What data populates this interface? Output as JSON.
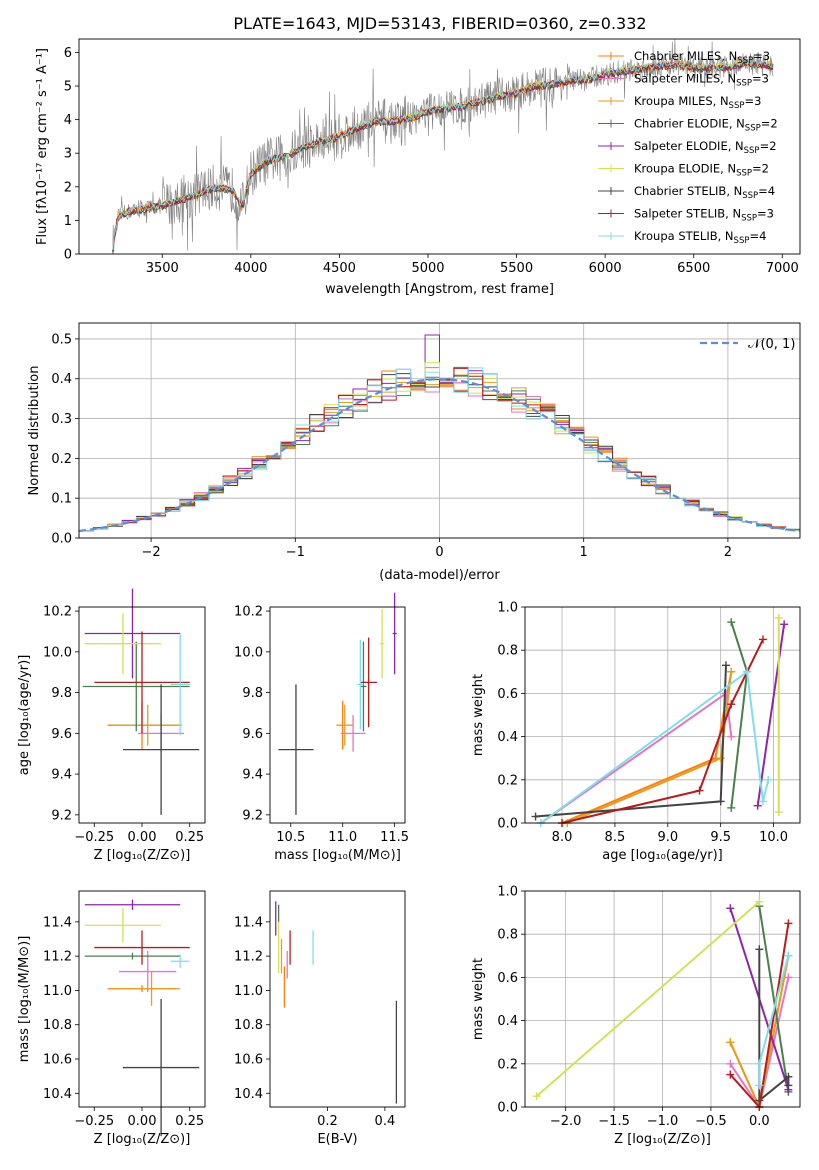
{
  "colors": {
    "chabrier_miles": "#ff7f0e",
    "salpeter_miles": "#e377c2",
    "kroupa_miles": "#e0a020",
    "chabrier_elodie": "#4a7f4a",
    "salpeter_elodie": "#8e24aa",
    "kroupa_elodie": "#d4e157",
    "chabrier_stelib": "#444444",
    "salpeter_stelib": "#b71c1c",
    "kroupa_stelib": "#80deea",
    "data": "#808080",
    "normal": "#5b8fd9"
  },
  "chart_data": [
    {
      "id": "spectrum",
      "type": "line",
      "title": "PLATE=1643, MJD=53143, FIBERID=0360, z=0.332",
      "xlabel": "wavelength [Angstrom, rest frame]",
      "ylabel": "Flux [fλ10⁻¹⁷ erg cm⁻² s⁻¹ A⁻¹]",
      "xlim": [
        3030,
        7100
      ],
      "ylim": [
        0,
        6.4
      ],
      "xticks": [
        "3500",
        "4000",
        "4500",
        "5000",
        "5500",
        "6000",
        "6500",
        "7000"
      ],
      "yticks": [
        "0",
        "1",
        "2",
        "3",
        "4",
        "5",
        "6"
      ],
      "legend_position": "top-right",
      "legend": [
        {
          "label": "Chabrier MILES, N",
          "sub": "SSP",
          "eq": "=3",
          "color": "#ff7f0e"
        },
        {
          "label": "Salpeter MILES, N",
          "sub": "SSP",
          "eq": "=3",
          "color": "#e377c2"
        },
        {
          "label": "Kroupa MILES, N",
          "sub": "SSP",
          "eq": "=3",
          "color": "#e0a020"
        },
        {
          "label": "Chabrier ELODIE, N",
          "sub": "SSP",
          "eq": "=2",
          "color": "#4a7f4a"
        },
        {
          "label": "Salpeter ELODIE, N",
          "sub": "SSP",
          "eq": "=2",
          "color": "#8e24aa"
        },
        {
          "label": "Kroupa ELODIE, N",
          "sub": "SSP",
          "eq": "=2",
          "color": "#d4e157"
        },
        {
          "label": "Chabrier STELIB, N",
          "sub": "SSP",
          "eq": "=4",
          "color": "#444444"
        },
        {
          "label": "Salpeter STELIB, N",
          "sub": "SSP",
          "eq": "=3",
          "color": "#b71c1c"
        },
        {
          "label": "Kroupa STELIB, N",
          "sub": "SSP",
          "eq": "=4",
          "color": "#80deea"
        }
      ],
      "model_continuum": {
        "x": [
          3220,
          3250,
          3300,
          3400,
          3500,
          3600,
          3700,
          3800,
          3900,
          3950,
          4000,
          4100,
          4200,
          4300,
          4400,
          4500,
          4600,
          4700,
          4800,
          4900,
          5000,
          5100,
          5200,
          5300,
          5400,
          5500,
          5600,
          5700,
          5800,
          5900,
          6000,
          6100,
          6200,
          6300,
          6400,
          6500,
          6600,
          6700,
          6800,
          6950
        ],
        "y": [
          0.2,
          1.1,
          1.25,
          1.35,
          1.45,
          1.6,
          1.8,
          2.0,
          1.9,
          1.4,
          2.4,
          2.8,
          2.9,
          3.2,
          3.35,
          3.5,
          3.75,
          3.95,
          3.95,
          4.05,
          4.25,
          4.35,
          4.4,
          4.55,
          4.7,
          4.8,
          5.0,
          5.05,
          5.15,
          5.2,
          5.35,
          5.45,
          5.5,
          5.6,
          5.65,
          5.55,
          5.55,
          5.55,
          5.7,
          5.6
        ]
      }
    },
    {
      "id": "residuals",
      "type": "histogram",
      "xlabel": "(data-model)/error",
      "ylabel": "Normed distribution",
      "xlim": [
        -2.5,
        2.5
      ],
      "ylim": [
        0,
        0.54
      ],
      "xticks": [
        "−2",
        "−1",
        "0",
        "1",
        "2"
      ],
      "yticks": [
        "0.0",
        "0.1",
        "0.2",
        "0.3",
        "0.4",
        "0.5"
      ],
      "grid": true,
      "legend_position": "top-right",
      "legend": [
        {
          "label": "𝒩(0, 1)",
          "color": "#5b8fd9",
          "style": "dashed"
        }
      ],
      "bin_width": 0.1,
      "bin_start": -2.5,
      "series_colors": [
        "#ff7f0e",
        "#e377c2",
        "#e0a020",
        "#4a7f4a",
        "#8e24aa",
        "#d4e157",
        "#444444",
        "#b71c1c",
        "#80deea"
      ],
      "noise_seed_note": ""
    },
    {
      "id": "age_vs_Z",
      "type": "errorbar",
      "xlabel": "Z [log₁₀(Z/Z⊙)]",
      "ylabel": "age  [log₁₀(age/yr)]",
      "xlim": [
        -0.33,
        0.33
      ],
      "ylim": [
        9.16,
        10.22
      ],
      "xticks": [
        {
          "v": -0.25,
          "t": "−0.25"
        },
        {
          "v": 0.0,
          "t": "0.00"
        },
        {
          "v": 0.25,
          "t": "0.25"
        }
      ],
      "yticks": [
        {
          "v": 9.2,
          "t": "9.2"
        },
        {
          "v": 9.4,
          "t": "9.4"
        },
        {
          "v": 9.6,
          "t": "9.6"
        },
        {
          "v": 9.8,
          "t": "9.8"
        },
        {
          "v": 10.0,
          "t": "10.0"
        },
        {
          "v": 10.2,
          "t": "10.2"
        }
      ],
      "points": [
        {
          "x": 0.0,
          "y": 9.64,
          "xerr": 0.18,
          "yerr": 0.12,
          "color": "#ff7f0e"
        },
        {
          "x": 0.1,
          "y": 9.6,
          "xerr": 0.12,
          "yerr": 0.09,
          "color": "#e377c2"
        },
        {
          "x": 0.03,
          "y": 9.64,
          "xerr": 0.18,
          "yerr": 0.1,
          "color": "#e0a020"
        },
        {
          "x": -0.03,
          "y": 9.83,
          "xerr": 0.28,
          "yerr": 0.22,
          "color": "#4a7f4a"
        },
        {
          "x": -0.05,
          "y": 10.09,
          "xerr": 0.25,
          "yerr": 0.22,
          "color": "#8e24aa"
        },
        {
          "x": -0.1,
          "y": 10.04,
          "xerr": 0.2,
          "yerr": 0.15,
          "color": "#d4e157"
        },
        {
          "x": 0.1,
          "y": 9.52,
          "xerr": 0.2,
          "yerr": 0.32,
          "color": "#444444"
        },
        {
          "x": 0.0,
          "y": 9.85,
          "xerr": 0.25,
          "yerr": 0.25,
          "color": "#b71c1c"
        },
        {
          "x": 0.2,
          "y": 9.84,
          "xerr": 0.05,
          "yerr": 0.25,
          "color": "#80deea"
        }
      ]
    },
    {
      "id": "age_vs_mass",
      "type": "errorbar",
      "xlabel": "mass [log₁₀(M/M⊙)]",
      "ylabel": "",
      "xlim": [
        10.3,
        11.6
      ],
      "ylim": [
        9.16,
        10.22
      ],
      "xticks": [
        {
          "v": 10.5,
          "t": "10.5"
        },
        {
          "v": 11.0,
          "t": "11.0"
        },
        {
          "v": 11.5,
          "t": "11.5"
        }
      ],
      "yticks": [
        {
          "v": 9.2,
          "t": "9.2"
        },
        {
          "v": 9.4,
          "t": "9.4"
        },
        {
          "v": 9.6,
          "t": "9.6"
        },
        {
          "v": 9.8,
          "t": "9.8"
        },
        {
          "v": 10.0,
          "t": "10.0"
        },
        {
          "v": 10.2,
          "t": "10.2"
        }
      ],
      "points": [
        {
          "x": 11.0,
          "y": 9.64,
          "xerr": 0.02,
          "yerr": 0.12,
          "color": "#ff7f0e"
        },
        {
          "x": 11.1,
          "y": 9.6,
          "xerr": 0.12,
          "yerr": 0.09,
          "color": "#e377c2"
        },
        {
          "x": 11.02,
          "y": 9.64,
          "xerr": 0.08,
          "yerr": 0.1,
          "color": "#e0a020"
        },
        {
          "x": 11.2,
          "y": 9.83,
          "xerr": 0.03,
          "yerr": 0.22,
          "color": "#4a7f4a"
        },
        {
          "x": 11.5,
          "y": 10.09,
          "xerr": 0.02,
          "yerr": 0.2,
          "color": "#8e24aa"
        },
        {
          "x": 11.38,
          "y": 10.04,
          "xerr": 0.02,
          "yerr": 0.17,
          "color": "#d4e157"
        },
        {
          "x": 10.55,
          "y": 9.52,
          "xerr": 0.17,
          "yerr": 0.32,
          "color": "#444444"
        },
        {
          "x": 11.25,
          "y": 9.85,
          "xerr": 0.08,
          "yerr": 0.22,
          "color": "#b71c1c"
        },
        {
          "x": 11.17,
          "y": 9.84,
          "xerr": 0.03,
          "yerr": 0.22,
          "color": "#80deea"
        }
      ]
    },
    {
      "id": "mass_weight_vs_age",
      "type": "line",
      "xlabel": "age  [log₁₀(age/yr)]",
      "ylabel": "mass weight",
      "xlim": [
        7.65,
        10.25
      ],
      "ylim": [
        0,
        1.0
      ],
      "xticks": [
        {
          "v": 8.0,
          "t": "8.0"
        },
        {
          "v": 8.5,
          "t": "8.5"
        },
        {
          "v": 9.0,
          "t": "9.0"
        },
        {
          "v": 9.5,
          "t": "9.5"
        },
        {
          "v": 10.0,
          "t": "10.0"
        }
      ],
      "yticks": [
        {
          "v": 0,
          "t": "0.0"
        },
        {
          "v": 0.2,
          "t": "0.2"
        },
        {
          "v": 0.4,
          "t": "0.4"
        },
        {
          "v": 0.6,
          "t": "0.6"
        },
        {
          "v": 0.8,
          "t": "0.8"
        },
        {
          "v": 1.0,
          "t": "1.0"
        }
      ],
      "grid": true,
      "series": [
        {
          "color": "#ff7f0e",
          "x": [
            8.0,
            9.45,
            9.6
          ],
          "y": [
            0.0,
            0.3,
            0.7
          ]
        },
        {
          "color": "#e377c2",
          "x": [
            7.8,
            9.55,
            9.6
          ],
          "y": [
            0.0,
            0.6,
            0.4
          ]
        },
        {
          "color": "#e0a020",
          "x": [
            8.05,
            9.5,
            9.6
          ],
          "y": [
            0.0,
            0.3,
            0.7
          ]
        },
        {
          "color": "#4a7f4a",
          "x": [
            9.6,
            9.75,
            9.6
          ],
          "y": [
            0.07,
            0.7,
            0.93
          ]
        },
        {
          "color": "#8e24aa",
          "x": [
            9.85,
            10.1
          ],
          "y": [
            0.08,
            0.92
          ]
        },
        {
          "color": "#d4e157",
          "x": [
            10.05,
            10.05
          ],
          "y": [
            0.05,
            0.95
          ]
        },
        {
          "color": "#444444",
          "x": [
            7.75,
            9.5,
            9.55
          ],
          "y": [
            0.03,
            0.1,
            0.73
          ]
        },
        {
          "color": "#b71c1c",
          "x": [
            8.0,
            9.3,
            9.6,
            9.9
          ],
          "y": [
            0.0,
            0.15,
            0.55,
            0.85
          ]
        },
        {
          "color": "#80deea",
          "x": [
            7.8,
            9.75,
            9.9,
            9.95
          ],
          "y": [
            0.0,
            0.7,
            0.1,
            0.2
          ]
        }
      ]
    },
    {
      "id": "mass_vs_Z",
      "type": "errorbar",
      "xlabel": "Z [log₁₀(Z/Z⊙)]",
      "ylabel": "mass [log₁₀(M/M⊙)]",
      "xlim": [
        -0.33,
        0.33
      ],
      "ylim": [
        10.32,
        11.58
      ],
      "xticks": [
        {
          "v": -0.25,
          "t": "−0.25"
        },
        {
          "v": 0.0,
          "t": "0.00"
        },
        {
          "v": 0.25,
          "t": "0.25"
        }
      ],
      "yticks": [
        {
          "v": 10.4,
          "t": "10.4"
        },
        {
          "v": 10.6,
          "t": "10.6"
        },
        {
          "v": 10.8,
          "t": "10.8"
        },
        {
          "v": 11.0,
          "t": "11.0"
        },
        {
          "v": 11.2,
          "t": "11.2"
        },
        {
          "v": 11.4,
          "t": "11.4"
        }
      ],
      "points": [
        {
          "x": 0.0,
          "y": 11.01,
          "xerr": 0.18,
          "yerr": 0.02,
          "color": "#ff7f0e"
        },
        {
          "x": 0.03,
          "y": 11.11,
          "xerr": 0.15,
          "yerr": 0.12,
          "color": "#e377c2"
        },
        {
          "x": 0.05,
          "y": 11.01,
          "xerr": 0.15,
          "yerr": 0.1,
          "color": "#e0a020"
        },
        {
          "x": -0.05,
          "y": 11.2,
          "xerr": 0.25,
          "yerr": 0.02,
          "color": "#4a7f4a"
        },
        {
          "x": -0.05,
          "y": 11.5,
          "xerr": 0.25,
          "yerr": 0.03,
          "color": "#8e24aa"
        },
        {
          "x": -0.1,
          "y": 11.38,
          "xerr": 0.2,
          "yerr": 0.1,
          "color": "#d4e157"
        },
        {
          "x": 0.1,
          "y": 10.55,
          "xerr": 0.2,
          "yerr": 0.4,
          "color": "#444444"
        },
        {
          "x": 0.0,
          "y": 11.25,
          "xerr": 0.25,
          "yerr": 0.1,
          "color": "#b71c1c"
        },
        {
          "x": 0.2,
          "y": 11.17,
          "xerr": 0.05,
          "yerr": 0.04,
          "color": "#80deea"
        }
      ]
    },
    {
      "id": "mass_vs_ebv",
      "type": "errorbar",
      "xlabel": "E(B-V)",
      "ylabel": "",
      "xlim": [
        0.0,
        0.47
      ],
      "ylim": [
        10.32,
        11.58
      ],
      "xticks": [
        {
          "v": 0.2,
          "t": "0.2"
        },
        {
          "v": 0.4,
          "t": "0.4"
        }
      ],
      "yticks": [
        {
          "v": 10.4,
          "t": "10.4"
        },
        {
          "v": 10.6,
          "t": "10.6"
        },
        {
          "v": 10.8,
          "t": "10.8"
        },
        {
          "v": 11.0,
          "t": "11.0"
        },
        {
          "v": 11.2,
          "t": "11.2"
        },
        {
          "v": 11.4,
          "t": "11.4"
        }
      ],
      "points": [
        {
          "x": 0.05,
          "y": 11.02,
          "xerr": 0.0,
          "yerr": 0.12,
          "color": "#ff7f0e"
        },
        {
          "x": 0.06,
          "y": 11.15,
          "xerr": 0.0,
          "yerr": 0.08,
          "color": "#e377c2"
        },
        {
          "x": 0.04,
          "y": 11.2,
          "xerr": 0.0,
          "yerr": 0.1,
          "color": "#e0a020"
        },
        {
          "x": 0.03,
          "y": 11.45,
          "xerr": 0.0,
          "yerr": 0.05,
          "color": "#4a7f4a"
        },
        {
          "x": 0.02,
          "y": 11.42,
          "xerr": 0.0,
          "yerr": 0.1,
          "color": "#8e24aa"
        },
        {
          "x": 0.03,
          "y": 11.25,
          "xerr": 0.0,
          "yerr": 0.15,
          "color": "#d4e157"
        },
        {
          "x": 0.44,
          "y": 10.64,
          "xerr": 0.0,
          "yerr": 0.3,
          "color": "#444444"
        },
        {
          "x": 0.07,
          "y": 11.25,
          "xerr": 0.0,
          "yerr": 0.1,
          "color": "#b71c1c"
        },
        {
          "x": 0.15,
          "y": 11.25,
          "xerr": 0.0,
          "yerr": 0.1,
          "color": "#80deea"
        }
      ]
    },
    {
      "id": "mass_weight_vs_Z",
      "type": "line",
      "xlabel": "Z [log₁₀(Z/Z⊙)]",
      "ylabel": "mass weight",
      "xlim": [
        -2.42,
        0.42
      ],
      "ylim": [
        0,
        1.0
      ],
      "xticks": [
        {
          "v": -2.0,
          "t": "−2.0"
        },
        {
          "v": -1.5,
          "t": "−1.5"
        },
        {
          "v": -1.0,
          "t": "−1.0"
        },
        {
          "v": -0.5,
          "t": "−0.5"
        },
        {
          "v": 0.0,
          "t": "0.0"
        }
      ],
      "yticks": [
        {
          "v": 0,
          "t": "0.0"
        },
        {
          "v": 0.2,
          "t": "0.2"
        },
        {
          "v": 0.4,
          "t": "0.4"
        },
        {
          "v": 0.6,
          "t": "0.6"
        },
        {
          "v": 0.8,
          "t": "0.8"
        },
        {
          "v": 1.0,
          "t": "1.0"
        }
      ],
      "grid": true,
      "series": [
        {
          "color": "#ff7f0e",
          "x": [
            -0.3,
            0.0,
            0.3
          ],
          "y": [
            0.3,
            0.0,
            0.7
          ]
        },
        {
          "color": "#e377c2",
          "x": [
            -0.3,
            0.0,
            0.3
          ],
          "y": [
            0.2,
            0.0,
            0.6
          ]
        },
        {
          "color": "#e0a020",
          "x": [
            -0.3,
            0.0,
            0.3
          ],
          "y": [
            0.3,
            0.0,
            0.7
          ]
        },
        {
          "color": "#4a7f4a",
          "x": [
            0.0,
            0.3
          ],
          "y": [
            0.93,
            0.07
          ]
        },
        {
          "color": "#8e24aa",
          "x": [
            -0.3,
            0.3
          ],
          "y": [
            0.92,
            0.08
          ]
        },
        {
          "color": "#d4e157",
          "x": [
            -2.3,
            0.0
          ],
          "y": [
            0.05,
            0.95
          ]
        },
        {
          "color": "#444444",
          "x": [
            0.0,
            0.0,
            0.3,
            0.3
          ],
          "y": [
            0.73,
            0.03,
            0.14,
            0.1
          ]
        },
        {
          "color": "#b71c1c",
          "x": [
            -0.3,
            0.0,
            0.3
          ],
          "y": [
            0.15,
            0.0,
            0.85
          ]
        },
        {
          "color": "#80deea",
          "x": [
            0.0,
            0.0,
            0.3
          ],
          "y": [
            0.1,
            0.2,
            0.7
          ]
        }
      ]
    }
  ]
}
